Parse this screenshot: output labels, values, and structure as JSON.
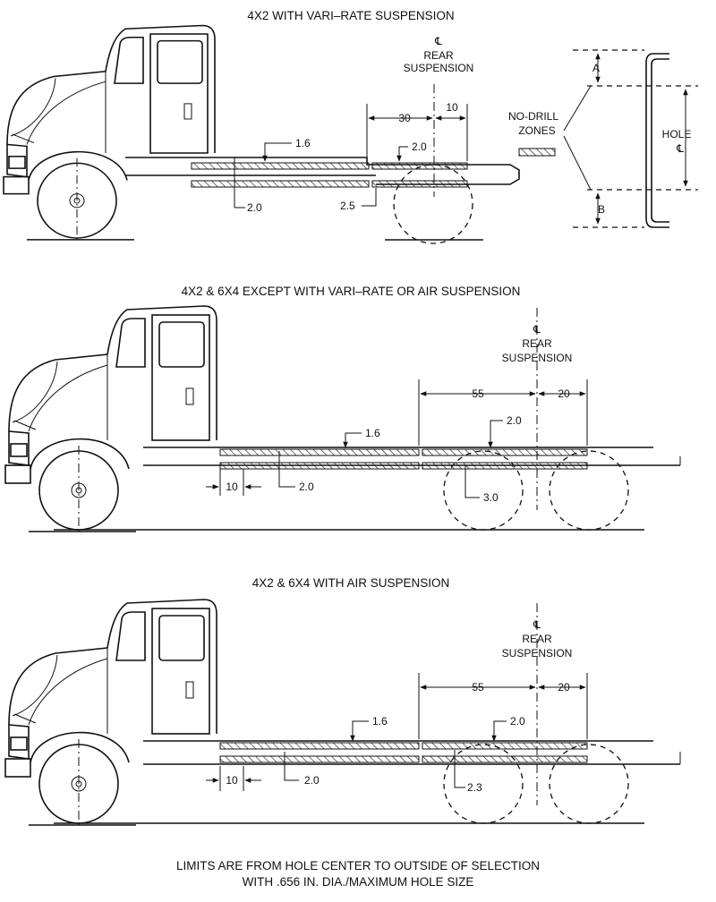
{
  "diagrams": [
    {
      "title": "4X2 WITH VARI–RATE SUSPENSION",
      "centerline": [
        "℄",
        "REAR",
        "SUSPENSION"
      ],
      "dims": {
        "d1": "1.6",
        "d2": "2.0",
        "d3": "2.0",
        "d4": "2.5",
        "span_front": "30",
        "span_rear": "10"
      },
      "no_drill_label": [
        "NO-DRILL",
        "ZONES"
      ],
      "hole_label": [
        "HOLE",
        "℄"
      ],
      "letter_a": "A",
      "letter_b": "B"
    },
    {
      "title": "4X2 & 6X4 EXCEPT WITH VARI–RATE OR AIR SUSPENSION",
      "centerline": [
        "℄",
        "REAR",
        "SUSPENSION"
      ],
      "dims": {
        "d1": "1.6",
        "d2": "2.0",
        "d3": "2.0",
        "d4": "3.0",
        "span_front": "55",
        "span_rear": "20",
        "front_offset": "10"
      }
    },
    {
      "title": "4X2 & 6X4 WITH AIR SUSPENSION",
      "centerline": [
        "℄",
        "REAR",
        "SUSPENSION"
      ],
      "dims": {
        "d1": "1.6",
        "d2": "2.0",
        "d3": "2.0",
        "d4": "2.3",
        "span_front": "55",
        "span_rear": "20",
        "front_offset": "10"
      }
    }
  ],
  "footer": [
    "LIMITS ARE FROM HOLE CENTER TO OUTSIDE OF SELECTION",
    "WITH .656 IN. DIA./MAXIMUM HOLE SIZE"
  ]
}
